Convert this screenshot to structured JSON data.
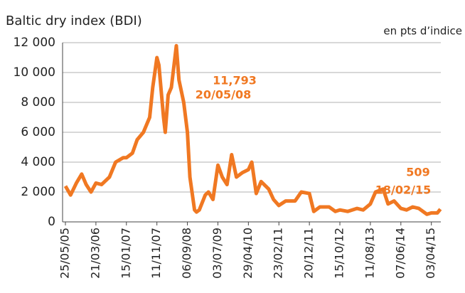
{
  "chart_data": {
    "type": "line",
    "title": "Baltic dry index (BDI)",
    "subtitle": "en pts d’indice",
    "x": [
      "25/05/05",
      "15/07/05",
      "10/09/05",
      "01/11/05",
      "15/12/05",
      "01/02/06",
      "21/03/06",
      "15/05/06",
      "01/08/06",
      "01/10/06",
      "15/12/06",
      "15/01/07",
      "15/03/07",
      "01/05/07",
      "01/07/07",
      "01/09/07",
      "01/10/07",
      "11/11/07",
      "01/12/07",
      "15/01/08",
      "01/02/08",
      "01/03/08",
      "01/04/08",
      "20/05/08",
      "15/06/08",
      "01/08/08",
      "06/09/08",
      "01/10/08",
      "15/11/08",
      "05/12/08",
      "01/01/09",
      "01/03/09",
      "01/04/09",
      "15/05/09",
      "03/07/09",
      "15/08/09",
      "01/10/09",
      "15/11/09",
      "01/01/10",
      "01/03/10",
      "29/04/10",
      "01/06/10",
      "15/07/10",
      "01/09/10",
      "15/11/10",
      "01/01/11",
      "23/02/11",
      "01/05/11",
      "01/08/11",
      "01/10/11",
      "20/12/11",
      "01/02/12",
      "01/04/12",
      "01/07/12",
      "01/09/12",
      "15/10/12",
      "01/01/13",
      "01/04/13",
      "01/06/13",
      "11/08/13",
      "01/10/13",
      "15/12/13",
      "01/02/14",
      "01/04/14",
      "07/06/14",
      "01/08/14",
      "01/10/14",
      "01/12/14",
      "18/02/15",
      "03/04/15",
      "01/06/15",
      "01/07/15"
    ],
    "series": [
      {
        "name": "BDI",
        "color": "#f07822",
        "values": [
          2400,
          1800,
          2600,
          3200,
          2500,
          2000,
          2600,
          2500,
          3000,
          4000,
          4300,
          4300,
          4600,
          5500,
          6000,
          7000,
          9000,
          11000,
          10500,
          7000,
          6000,
          8500,
          9000,
          11793,
          9500,
          8000,
          6000,
          3000,
          800,
          663,
          800,
          1800,
          2000,
          1500,
          3800,
          3000,
          2500,
          4500,
          3000,
          3300,
          3500,
          4000,
          1900,
          2700,
          2200,
          1500,
          1100,
          1400,
          1400,
          2000,
          1900,
          700,
          1000,
          1000,
          700,
          800,
          700,
          900,
          800,
          1200,
          2000,
          2200,
          1200,
          1400,
          900,
          800,
          1000,
          900,
          509,
          600,
          600,
          850
        ]
      }
    ],
    "xlim": [
      "25/05/05",
      "05/07/15"
    ],
    "xticks": [
      "25/05/05",
      "21/03/06",
      "15/01/07",
      "11/11/07",
      "06/09/08",
      "03/07/09",
      "29/04/10",
      "23/02/11",
      "20/12/11",
      "15/10/12",
      "11/08/13",
      "07/06/14",
      "03/04/15"
    ],
    "ylim": [
      0,
      12000
    ],
    "yticks": [
      0,
      {
        "value": 2000,
        "label": "2 000"
      },
      {
        "value": 4000,
        "label": "4 000"
      },
      {
        "value": 6000,
        "label": "6 000"
      },
      {
        "value": 8000,
        "label": "8 000"
      },
      {
        "value": 10000,
        "label": "10 000"
      },
      {
        "value": 12000,
        "label": "12 000"
      }
    ],
    "grid": true,
    "annotations": [
      {
        "text": "11,793"
      },
      {
        "text": "20/05/08"
      },
      {
        "text": "509"
      },
      {
        "text": "18/02/15"
      }
    ]
  }
}
